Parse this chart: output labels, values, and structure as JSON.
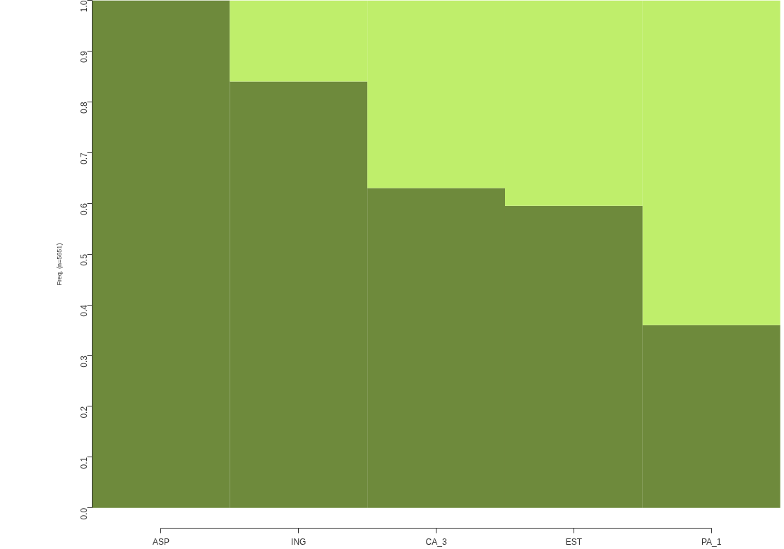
{
  "chart_data": {
    "type": "bar",
    "stacked": true,
    "ylabel": "Freq. (n=5651)",
    "categories": [
      "ASP",
      "ING",
      "CA_3",
      "EST",
      "PA_1"
    ],
    "series": [
      {
        "color": "#6e8a3c",
        "values": [
          1.0,
          0.84,
          0.63,
          0.595,
          0.36
        ]
      },
      {
        "color": "#bfee6b",
        "values": [
          0.0,
          0.16,
          0.37,
          0.405,
          0.64
        ]
      }
    ],
    "ylim": [
      -0.04,
      1.0
    ],
    "yticks": [
      {
        "value": 0,
        "label": "0.0"
      },
      0.1,
      0.2,
      0.3,
      0.4,
      0.5,
      0.6,
      0.7,
      0.8,
      0.9,
      {
        "value": 1,
        "label": "1.0"
      }
    ],
    "grid": false
  }
}
